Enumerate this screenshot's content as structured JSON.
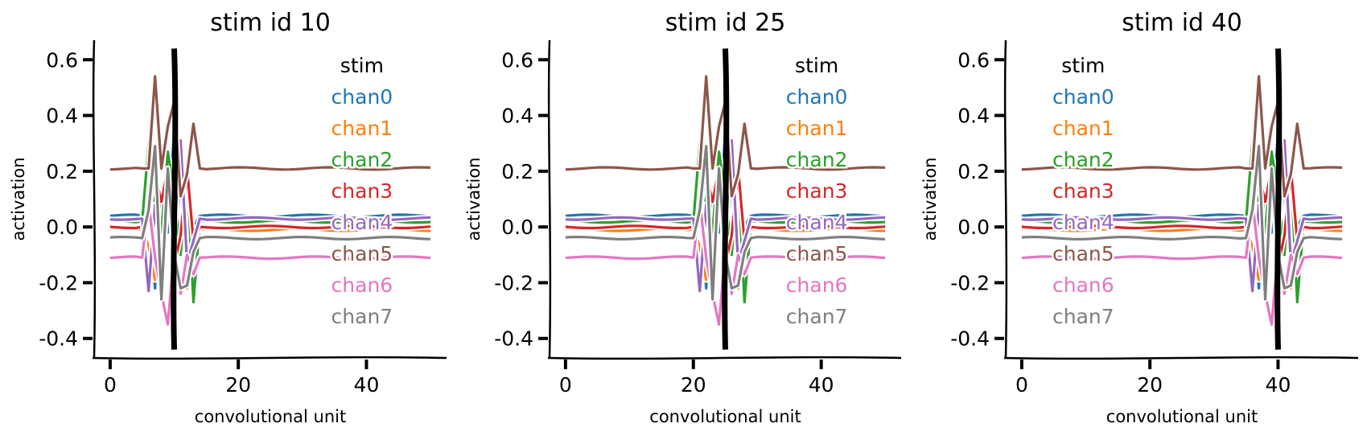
{
  "figure": {
    "panels": [
      {
        "title": "stim id 10",
        "xlabel": "convolutional unit",
        "ylabel": "activation"
      },
      {
        "title": "stim id 25",
        "xlabel": "convolutional unit",
        "ylabel": "activation"
      },
      {
        "title": "stim id 40",
        "xlabel": "convolutional unit",
        "ylabel": "activation"
      }
    ]
  },
  "chart_data": [
    {
      "type": "line",
      "title": "stim id 10",
      "xlabel": "convolutional unit",
      "ylabel": "activation",
      "stim_position": 10,
      "xlim": [
        -2.5,
        52.5
      ],
      "ylim": [
        -0.47,
        0.67
      ],
      "xticks": [
        "0",
        "20",
        "40"
      ],
      "yticks": [
        "0.6",
        "0.4",
        "0.2",
        "0.0",
        "-0.2",
        "-0.4"
      ],
      "legend_location": "upper-right",
      "grid": false,
      "stim_line": {
        "name": "stim",
        "color": "#000000",
        "x": 10
      },
      "series": [
        {
          "name": "chan0",
          "color": "#1f77b4",
          "baseline": 0.04
        },
        {
          "name": "chan1",
          "color": "#ff7f0e",
          "baseline": -0.01
        },
        {
          "name": "chan2",
          "color": "#2ca02c",
          "baseline": 0.02
        },
        {
          "name": "chan3",
          "color": "#d62728",
          "baseline": 0.0
        },
        {
          "name": "chan4",
          "color": "#9467bd",
          "baseline": 0.03
        },
        {
          "name": "chan5",
          "color": "#8c564b",
          "baseline": 0.21
        },
        {
          "name": "chan6",
          "color": "#e377c2",
          "baseline": -0.11
        },
        {
          "name": "chan7",
          "color": "#7f7f7f",
          "baseline": -0.04
        }
      ]
    },
    {
      "type": "line",
      "title": "stim id 25",
      "xlabel": "convolutional unit",
      "ylabel": "activation",
      "stim_position": 25,
      "xlim": [
        -2.5,
        52.5
      ],
      "ylim": [
        -0.47,
        0.67
      ],
      "xticks": [
        "0",
        "20",
        "40"
      ],
      "yticks": [
        "0.6",
        "0.4",
        "0.2",
        "0.0",
        "-0.2",
        "-0.4"
      ],
      "legend_location": "upper-right",
      "grid": false,
      "stim_line": {
        "name": "stim",
        "color": "#000000",
        "x": 25
      },
      "series": [
        {
          "name": "chan0",
          "color": "#1f77b4",
          "baseline": 0.04
        },
        {
          "name": "chan1",
          "color": "#ff7f0e",
          "baseline": -0.01
        },
        {
          "name": "chan2",
          "color": "#2ca02c",
          "baseline": 0.02
        },
        {
          "name": "chan3",
          "color": "#d62728",
          "baseline": 0.0
        },
        {
          "name": "chan4",
          "color": "#9467bd",
          "baseline": 0.03
        },
        {
          "name": "chan5",
          "color": "#8c564b",
          "baseline": 0.21
        },
        {
          "name": "chan6",
          "color": "#e377c2",
          "baseline": -0.11
        },
        {
          "name": "chan7",
          "color": "#7f7f7f",
          "baseline": -0.04
        }
      ]
    },
    {
      "type": "line",
      "title": "stim id 40",
      "xlabel": "convolutional unit",
      "ylabel": "activation",
      "stim_position": 40,
      "xlim": [
        -2.5,
        52.5
      ],
      "ylim": [
        -0.47,
        0.67
      ],
      "xticks": [
        "0",
        "20",
        "40"
      ],
      "yticks": [
        "0.6",
        "0.4",
        "0.2",
        "0.0",
        "-0.2",
        "-0.4"
      ],
      "legend_location": "upper-left",
      "grid": false,
      "stim_line": {
        "name": "stim",
        "color": "#000000",
        "x": 40
      },
      "series": [
        {
          "name": "chan0",
          "color": "#1f77b4",
          "baseline": 0.04
        },
        {
          "name": "chan1",
          "color": "#ff7f0e",
          "baseline": -0.01
        },
        {
          "name": "chan2",
          "color": "#2ca02c",
          "baseline": 0.02
        },
        {
          "name": "chan3",
          "color": "#d62728",
          "baseline": 0.0
        },
        {
          "name": "chan4",
          "color": "#9467bd",
          "baseline": 0.03
        },
        {
          "name": "chan5",
          "color": "#8c564b",
          "baseline": 0.21
        },
        {
          "name": "chan6",
          "color": "#e377c2",
          "baseline": -0.11
        },
        {
          "name": "chan7",
          "color": "#7f7f7f",
          "baseline": -0.04
        }
      ]
    }
  ]
}
